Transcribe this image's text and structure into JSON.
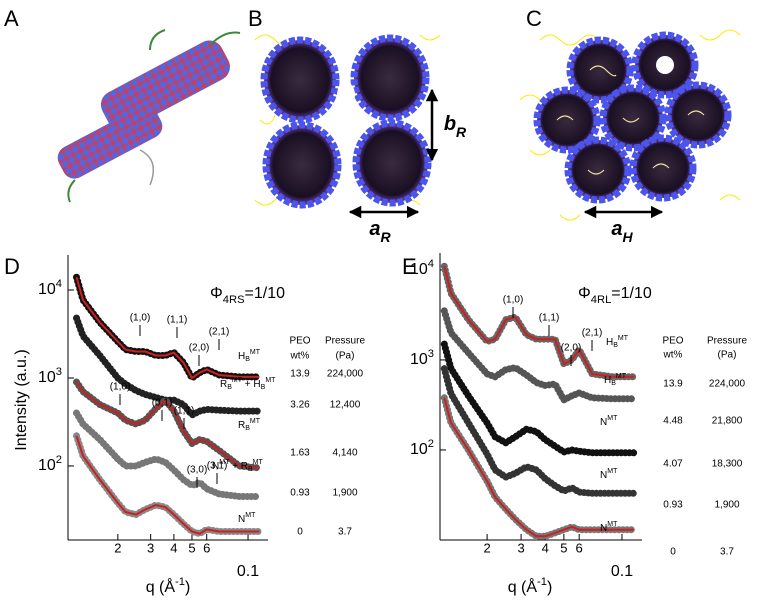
{
  "panels": {
    "a": "A",
    "b": "B",
    "c": "C"
  },
  "dimensions": {
    "b_R": {
      "text": "b",
      "sub": "R"
    },
    "a_R": {
      "text": "a",
      "sub": "R"
    },
    "a_H": {
      "text": "a",
      "sub": "H"
    }
  },
  "chart_data": [
    {
      "type": "line",
      "panel": "D",
      "log_x": true,
      "log_y": true,
      "phase": {
        "text": "Φ",
        "sub": "4RS",
        "after": "=1/10"
      },
      "y_label": "Intensity (a.u.)",
      "x_label": {
        "text": "q (Å",
        "sup": "-1",
        "after": ")"
      },
      "x": [
        0.012,
        0.013,
        0.016,
        0.02,
        0.022,
        0.025,
        0.028,
        0.032,
        0.036,
        0.04,
        0.045,
        0.05,
        0.055,
        0.06,
        0.07,
        0.09,
        0.115
      ],
      "xlim": [
        0.0108,
        0.128
      ],
      "ylim": [
        14.4,
        25000
      ],
      "xticks": [
        {
          "value": 0.02,
          "label": "2"
        },
        {
          "value": 0.03,
          "label": "3"
        },
        {
          "value": 0.04,
          "label": "4"
        },
        {
          "value": 0.05,
          "label": "5"
        },
        {
          "value": 0.06,
          "label": "6"
        },
        0.1
      ],
      "yticks": [
        {
          "value": 100,
          "label": "10",
          "sup": "2"
        },
        {
          "value": 1000,
          "label": "10",
          "sup": "3"
        },
        {
          "value": 10000,
          "label": "10",
          "sup": "4"
        }
      ],
      "fit_color": "#cc1f1f",
      "series": [
        {
          "name": [
            {
              "text": "H",
              "sub": "B",
              "sup": "MT"
            }
          ],
          "color": "#111111",
          "fit": true,
          "values": [
            14000,
            7700,
            4300,
            2600,
            2100,
            2000,
            2000,
            1800,
            1800,
            1950,
            1500,
            1000,
            1150,
            1250,
            1080,
            1030,
            1030
          ]
        },
        {
          "name": [
            {
              "text": "R",
              "sub": "B",
              "sup": "MT"
            },
            {
              "text": " + H",
              "sub": "B",
              "sup": "MT"
            }
          ],
          "color": "#222222",
          "fit": false,
          "values": [
            4800,
            3000,
            1800,
            1000,
            850,
            720,
            650,
            600,
            560,
            560,
            500,
            380,
            420,
            440,
            430,
            420,
            420
          ]
        },
        {
          "name": [
            {
              "text": "R",
              "sub": "B",
              "sup": "MT"
            }
          ],
          "color": "#555555",
          "fit": true,
          "values": [
            900,
            700,
            500,
            400,
            330,
            300,
            330,
            450,
            560,
            420,
            250,
            180,
            200,
            190,
            150,
            100,
            95
          ]
        },
        {
          "name": [
            {
              "text": "N",
              "sup": "MT"
            },
            {
              "text": " + R",
              "sub": "B",
              "sup": "MT"
            }
          ],
          "color": "#777777",
          "fit": false,
          "values": [
            400,
            300,
            200,
            120,
            100,
            100,
            110,
            120,
            110,
            90,
            70,
            60,
            65,
            55,
            48,
            45,
            45
          ]
        },
        {
          "name": [
            {
              "text": "N",
              "sup": "MT"
            }
          ],
          "color": "#888888",
          "fit": true,
          "values": [
            220,
            130,
            70,
            38,
            30,
            28,
            32,
            36,
            34,
            28,
            22,
            18,
            17,
            19,
            18,
            18,
            18
          ]
        }
      ],
      "peak_labels": [
        "(1,0)",
        "(1,1)",
        "(2,0)",
        "(2,1)",
        "(1,0)",
        "(0,1)",
        "(1,1)",
        "(3,0)",
        "(3,1)"
      ],
      "columns": [
        [
          "PEO",
          "wt%"
        ],
        [
          "Pressure",
          "(Pa)"
        ]
      ],
      "peo": [
        13.9,
        3.26,
        1.63,
        0.93,
        0
      ],
      "pressure": [
        {
          "value": 224000,
          "label": "224,000"
        },
        {
          "value": 12400,
          "label": "12,400"
        },
        {
          "value": 4140,
          "label": "4,140"
        },
        {
          "value": 1900,
          "label": "1,900"
        },
        3.7
      ]
    },
    {
      "type": "line",
      "panel": "E",
      "log_x": true,
      "log_y": true,
      "phase": {
        "text": "Φ",
        "sub": "4RL",
        "after": "=1/10"
      },
      "x_label": {
        "text": "q (Å",
        "sup": "-1",
        "after": ")"
      },
      "x": [
        0.012,
        0.013,
        0.016,
        0.02,
        0.022,
        0.025,
        0.028,
        0.032,
        0.036,
        0.04,
        0.045,
        0.05,
        0.055,
        0.06,
        0.07,
        0.09,
        0.115
      ],
      "xlim": [
        0.0114,
        0.127
      ],
      "ylim": [
        10,
        15400
      ],
      "xticks": [
        {
          "value": 0.02,
          "label": "2"
        },
        {
          "value": 0.03,
          "label": "3"
        },
        {
          "value": 0.04,
          "label": "4"
        },
        {
          "value": 0.05,
          "label": "5"
        },
        {
          "value": 0.06,
          "label": "6"
        },
        0.1
      ],
      "yticks": [
        {
          "value": 100,
          "label": "10",
          "sup": "2"
        },
        {
          "value": 1000,
          "label": "10",
          "sup": "3"
        },
        {
          "value": 10000,
          "label": "10",
          "sup": "4"
        }
      ],
      "fit_color": "#cc1f1f",
      "series": [
        {
          "name": [
            {
              "text": "H",
              "sub": "B",
              "sup": "MT"
            }
          ],
          "color": "#666666",
          "fit": true,
          "values": [
            11000,
            5500,
            2800,
            1600,
            1700,
            2800,
            3000,
            1900,
            1700,
            1700,
            1700,
            900,
            1000,
            1300,
            700,
            650,
            650
          ]
        },
        {
          "name": [
            {
              "text": "H",
              "sub": "B",
              "sup": "MT"
            }
          ],
          "color": "#555555",
          "fit": false,
          "values": [
            3500,
            2000,
            1200,
            700,
            650,
            780,
            820,
            680,
            560,
            520,
            540,
            360,
            400,
            430,
            380,
            370,
            370
          ]
        },
        {
          "name": [
            {
              "text": "N",
              "sup": "MT"
            }
          ],
          "color": "#111111",
          "fit": false,
          "values": [
            1500,
            800,
            400,
            200,
            140,
            120,
            140,
            170,
            160,
            130,
            110,
            95,
            100,
            97,
            93,
            93,
            93
          ]
        },
        {
          "name": [
            {
              "text": "N",
              "sup": "MT"
            }
          ],
          "color": "#333333",
          "fit": false,
          "values": [
            800,
            420,
            200,
            90,
            60,
            50,
            55,
            65,
            60,
            48,
            40,
            35,
            38,
            34,
            33,
            33,
            33
          ]
        },
        {
          "name": [
            {
              "text": "N",
              "sup": "MT"
            }
          ],
          "color": "#777777",
          "fit": true,
          "values": [
            380,
            200,
            100,
            45,
            30,
            22,
            17,
            13,
            11,
            11,
            12,
            13,
            14,
            13,
            13,
            13,
            13
          ]
        }
      ],
      "peak_labels": [
        "(1,0)",
        "(1,1)",
        "(2,0)",
        "(2,1)"
      ],
      "columns": [
        [
          "PEO",
          "wt%"
        ],
        [
          "Pressure",
          "(Pa)"
        ]
      ],
      "peo": [
        13.9,
        4.48,
        4.07,
        0.93,
        0
      ],
      "pressure": [
        {
          "value": 224000,
          "label": "224,000"
        },
        {
          "value": 21800,
          "label": "21,800"
        },
        {
          "value": 18300,
          "label": "18,300"
        },
        {
          "value": 1900,
          "label": "1,900"
        },
        3.7
      ]
    }
  ]
}
